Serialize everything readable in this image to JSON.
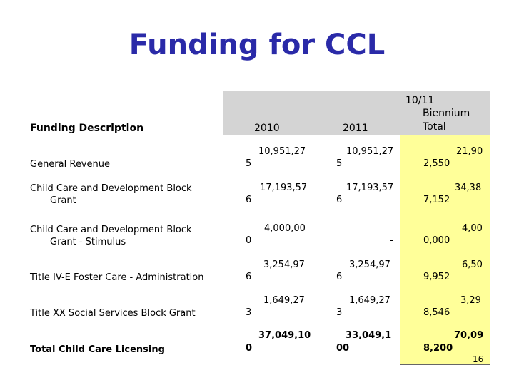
{
  "title": "Funding for CCL",
  "table": {
    "description_header": "Funding Description",
    "col_2010": "2010",
    "col_2011": "2011",
    "col_biennium_line1": "10/11",
    "col_biennium_line2": "Biennium",
    "col_biennium_line3": "Total",
    "rows": [
      {
        "label_line1": "General Revenue",
        "label_line2": "",
        "v2010a": "10,951,27",
        "v2010b": "5",
        "v2011a": "10,951,27",
        "v2011b": "5",
        "vtota": "21,90",
        "vtotb": "2,550"
      },
      {
        "label_line1": "Child Care and Development Block",
        "label_line2": "Grant",
        "v2010a": "17,193,57",
        "v2010b": "6",
        "v2011a": "17,193,57",
        "v2011b": "6",
        "vtota": "34,38",
        "vtotb": "7,152"
      },
      {
        "label_line1": "Child Care and Development Block",
        "label_line2": "Grant - Stimulus",
        "v2010a": "4,000,00",
        "v2010b": "0",
        "v2011a": "-",
        "v2011b": "",
        "vtota": "4,00",
        "vtotb": "0,000"
      },
      {
        "label_line1": "Title IV-E Foster Care - Administration",
        "label_line2": "",
        "v2010a": "3,254,97",
        "v2010b": "6",
        "v2011a": "3,254,97",
        "v2011b": "6",
        "vtota": "6,50",
        "vtotb": "9,952"
      },
      {
        "label_line1": "Title XX Social Services Block Grant",
        "label_line2": "",
        "v2010a": "1,649,27",
        "v2010b": "3",
        "v2011a": "1,649,27",
        "v2011b": "3",
        "vtota": "3,29",
        "vtotb": "8,546"
      },
      {
        "label_line1": "Total Child Care Licensing",
        "label_line2": "",
        "v2010a": "37,049,10",
        "v2010b": "0",
        "v2011a": "33,049,1",
        "v2011b": "00",
        "vtota": "70,09",
        "vtotb": "8,200"
      }
    ]
  },
  "page_number": "16"
}
